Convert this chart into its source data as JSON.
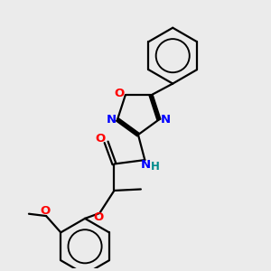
{
  "bg_color": "#ebebeb",
  "bond_color": "#000000",
  "oxygen_color": "#ff0000",
  "nitrogen_color": "#0000ff",
  "nh_color": "#008b8b",
  "line_width": 1.6,
  "figsize": [
    3.0,
    3.0
  ],
  "dpi": 100,
  "xlim": [
    0,
    10
  ],
  "ylim": [
    0,
    10
  ]
}
